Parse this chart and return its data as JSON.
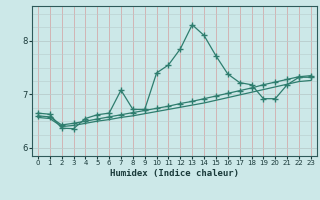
{
  "xlabel": "Humidex (Indice chaleur)",
  "bg_color": "#cce8e8",
  "line_color": "#2e7d6e",
  "grid_major_color": "#b8d4d4",
  "grid_minor_color": "#e0b8b8",
  "xlim": [
    -0.5,
    23.5
  ],
  "ylim": [
    5.85,
    8.65
  ],
  "xticks": [
    0,
    1,
    2,
    3,
    4,
    5,
    6,
    7,
    8,
    9,
    10,
    11,
    12,
    13,
    14,
    15,
    16,
    17,
    18,
    19,
    20,
    21,
    22,
    23
  ],
  "yticks": [
    6,
    7,
    8
  ],
  "line1_x": [
    0,
    1,
    2,
    3,
    4,
    5,
    6,
    7,
    8,
    9,
    10,
    11,
    12,
    13,
    14,
    15,
    16,
    17,
    18,
    19,
    20,
    21,
    22,
    23
  ],
  "line1_y": [
    6.65,
    6.63,
    6.37,
    6.36,
    6.55,
    6.62,
    6.65,
    7.08,
    6.72,
    6.72,
    7.4,
    7.55,
    7.85,
    8.3,
    8.1,
    7.72,
    7.38,
    7.22,
    7.18,
    6.92,
    6.92,
    7.18,
    7.32,
    7.32
  ],
  "line2_x": [
    0,
    1,
    2,
    3,
    4,
    5,
    6,
    7,
    8,
    9,
    10,
    11,
    12,
    13,
    14,
    15,
    16,
    17,
    18,
    19,
    20,
    21,
    22,
    23
  ],
  "line2_y": [
    6.6,
    6.58,
    6.43,
    6.46,
    6.5,
    6.54,
    6.58,
    6.62,
    6.66,
    6.7,
    6.74,
    6.78,
    6.83,
    6.87,
    6.92,
    6.97,
    7.02,
    7.07,
    7.12,
    7.18,
    7.23,
    7.28,
    7.33,
    7.35
  ],
  "line3_x": [
    0,
    1,
    2,
    3,
    4,
    5,
    6,
    7,
    8,
    9,
    10,
    11,
    12,
    13,
    14,
    15,
    16,
    17,
    18,
    19,
    20,
    21,
    22,
    23
  ],
  "line3_y": [
    6.57,
    6.55,
    6.4,
    6.42,
    6.46,
    6.5,
    6.53,
    6.57,
    6.6,
    6.64,
    6.68,
    6.72,
    6.76,
    6.8,
    6.84,
    6.89,
    6.94,
    6.99,
    7.04,
    7.09,
    7.14,
    7.19,
    7.24,
    7.26
  ]
}
